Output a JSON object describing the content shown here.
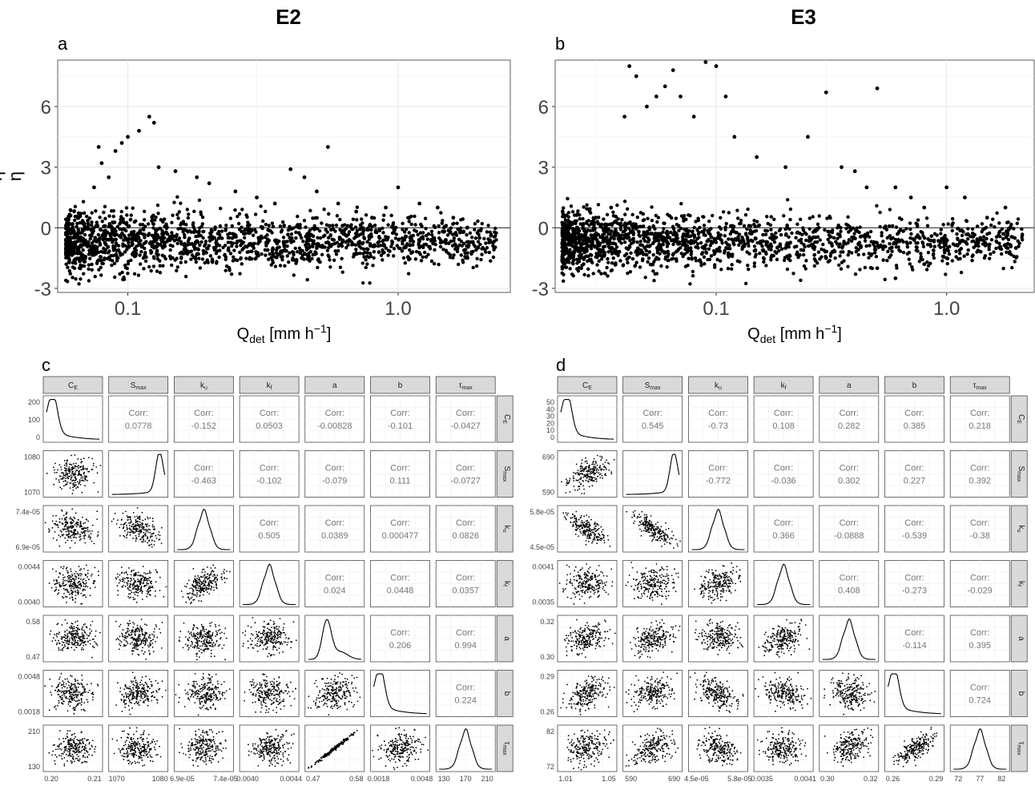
{
  "top": {
    "left_title": "E2",
    "right_title": "E3",
    "panel_labels": [
      "a",
      "b",
      "c",
      "d"
    ],
    "ylabel": "η",
    "xlabel_main": "Q",
    "xlabel_sub": "det",
    "xlabel_unit": " [mm h",
    "xlabel_exp": "−1",
    "xlabel_close": "]",
    "yticks": [
      "-3",
      "0",
      "3",
      "6"
    ],
    "xticks": [
      "0.1",
      "1.0"
    ]
  },
  "pairs": {
    "params": [
      {
        "base": "C",
        "sub": "E"
      },
      {
        "base": "S",
        "sub": "max"
      },
      {
        "base": "k",
        "sub": "u"
      },
      {
        "base": "k",
        "sub": "f"
      },
      {
        "base": "a",
        "sub": ""
      },
      {
        "base": "b",
        "sub": ""
      },
      {
        "base": "τ",
        "sub": "max"
      }
    ],
    "corr_label": "Corr:"
  },
  "chart_data": [
    {
      "type": "scatter",
      "panel": "a",
      "title": "E2",
      "xlabel": "Qdet [mm h−1]",
      "ylabel": "η",
      "x_scale": "log",
      "xlim": [
        0.055,
        2.6
      ],
      "ylim": [
        -3.2,
        8.3
      ],
      "xticks": [
        0.1,
        1.0
      ],
      "yticks": [
        -3,
        0,
        3,
        6
      ],
      "hline": 0,
      "grid": true,
      "points": [
        [
          0.06,
          -1.2
        ],
        [
          0.065,
          -1.0
        ],
        [
          0.07,
          -0.8
        ],
        [
          0.075,
          2.0
        ],
        [
          0.078,
          4.0
        ],
        [
          0.08,
          3.2
        ],
        [
          0.085,
          2.5
        ],
        [
          0.09,
          3.8
        ],
        [
          0.095,
          4.2
        ],
        [
          0.1,
          4.5
        ],
        [
          0.11,
          4.8
        ],
        [
          0.12,
          5.5
        ],
        [
          0.125,
          5.2
        ],
        [
          0.13,
          3.0
        ],
        [
          0.15,
          2.8
        ],
        [
          0.18,
          2.5
        ],
        [
          0.2,
          2.2
        ],
        [
          0.25,
          1.8
        ],
        [
          0.3,
          1.5
        ],
        [
          0.35,
          1.2
        ],
        [
          0.4,
          2.9
        ],
        [
          0.45,
          2.5
        ],
        [
          0.5,
          1.8
        ],
        [
          0.55,
          4.0
        ],
        [
          0.6,
          1.2
        ],
        [
          0.7,
          0.8
        ],
        [
          0.8,
          0.5
        ],
        [
          0.9,
          1.0
        ],
        [
          1.0,
          2.0
        ],
        [
          1.1,
          0.5
        ],
        [
          1.2,
          1.2
        ],
        [
          1.4,
          1.0
        ],
        [
          1.6,
          0.5
        ],
        [
          1.8,
          0.0
        ],
        [
          2.0,
          -0.5
        ],
        [
          2.2,
          -0.7
        ],
        [
          0.3,
          -1.3
        ],
        [
          0.5,
          -1.0
        ],
        [
          0.8,
          -0.9
        ],
        [
          1.5,
          -0.6
        ]
      ]
    },
    {
      "type": "scatter",
      "panel": "b",
      "title": "E3",
      "xlabel": "Qdet [mm h−1]",
      "ylabel": "η",
      "x_scale": "log",
      "xlim": [
        0.02,
        2.4
      ],
      "ylim": [
        -3.2,
        8.3
      ],
      "xticks": [
        0.1,
        1.0
      ],
      "yticks": [
        -3,
        0,
        3,
        6
      ],
      "hline": 0,
      "grid": true,
      "points": [
        [
          0.022,
          0.2
        ],
        [
          0.025,
          0.0
        ],
        [
          0.03,
          0.5
        ],
        [
          0.035,
          1.0
        ],
        [
          0.04,
          5.5
        ],
        [
          0.042,
          8.0
        ],
        [
          0.045,
          7.5
        ],
        [
          0.05,
          6.0
        ],
        [
          0.055,
          6.5
        ],
        [
          0.06,
          7.0
        ],
        [
          0.065,
          7.8
        ],
        [
          0.07,
          6.5
        ],
        [
          0.08,
          5.5
        ],
        [
          0.09,
          8.2
        ],
        [
          0.1,
          8.0
        ],
        [
          0.11,
          6.5
        ],
        [
          0.12,
          4.5
        ],
        [
          0.15,
          3.5
        ],
        [
          0.2,
          3.0
        ],
        [
          0.25,
          4.5
        ],
        [
          0.3,
          6.7
        ],
        [
          0.35,
          3.0
        ],
        [
          0.4,
          2.8
        ],
        [
          0.45,
          2.0
        ],
        [
          0.5,
          6.9
        ],
        [
          0.6,
          2.0
        ],
        [
          0.7,
          1.5
        ],
        [
          0.8,
          1.0
        ],
        [
          1.0,
          2.0
        ],
        [
          1.2,
          1.5
        ],
        [
          1.5,
          0.5
        ],
        [
          1.8,
          1.0
        ],
        [
          2.0,
          -1.0
        ],
        [
          0.3,
          -1.5
        ],
        [
          0.5,
          -2.0
        ],
        [
          0.6,
          -2.5
        ],
        [
          1.0,
          -1.5
        ],
        [
          0.2,
          -1.0
        ],
        [
          0.8,
          -1.8
        ],
        [
          1.4,
          -0.5
        ]
      ]
    },
    {
      "type": "scatter-matrix",
      "panel": "c",
      "variables": [
        "CE",
        "Smax",
        "ku",
        "kf",
        "a",
        "b",
        "τmax"
      ],
      "corr": [
        [
          "",
          "0.0778",
          "-0.152",
          "0.0503",
          "-0.00828",
          "-0.101",
          "-0.0427"
        ],
        [
          "",
          "",
          "-0.463",
          "-0.102",
          "-0.079",
          "0.111",
          "-0.0727"
        ],
        [
          "",
          "",
          "",
          "0.505",
          "0.0389",
          "0.000477",
          "0.0826"
        ],
        [
          "",
          "",
          "",
          "",
          "0.024",
          "0.0448",
          "0.0357"
        ],
        [
          "",
          "",
          "",
          "",
          "",
          "0.206",
          "0.994"
        ],
        [
          "",
          "",
          "",
          "",
          "",
          "",
          "0.224"
        ],
        [
          "",
          "",
          "",
          "",
          "",
          "",
          ""
        ]
      ],
      "row_ticks": [
        [
          "0",
          "100",
          "200"
        ],
        [
          "1070",
          "1080"
        ],
        [
          "6.9e-05",
          "7.4e-05"
        ],
        [
          "0.0040",
          "0.0044"
        ],
        [
          "0.47",
          "0.58"
        ],
        [
          "0.0018",
          "0.0048"
        ],
        [
          "130",
          "210"
        ]
      ],
      "col_ticks": [
        [
          "0.20",
          "0.21"
        ],
        [
          "1070",
          "1080"
        ],
        [
          "6.9e-05",
          "7.4e-05"
        ],
        [
          "0.0040",
          "0.0044"
        ],
        [
          "0.47",
          "0.58"
        ],
        [
          "0.0018",
          "0.0048"
        ],
        [
          "130",
          "170",
          "210"
        ]
      ]
    },
    {
      "type": "scatter-matrix",
      "panel": "d",
      "variables": [
        "CE",
        "Smax",
        "ku",
        "kf",
        "a",
        "b",
        "τmax"
      ],
      "corr": [
        [
          "",
          "0.545",
          "-0.73",
          "0.108",
          "0.282",
          "0.385",
          "0.218"
        ],
        [
          "",
          "",
          "-0.772",
          "-0.036",
          "0.302",
          "0.227",
          "0.392"
        ],
        [
          "",
          "",
          "",
          "0.366",
          "-0.0888",
          "-0.539",
          "-0.38"
        ],
        [
          "",
          "",
          "",
          "",
          "0.408",
          "-0.273",
          "-0.029"
        ],
        [
          "",
          "",
          "",
          "",
          "",
          "-0.114",
          "0.395"
        ],
        [
          "",
          "",
          "",
          "",
          "",
          "",
          "0.724"
        ],
        [
          "",
          "",
          "",
          "",
          "",
          "",
          ""
        ]
      ],
      "row_ticks": [
        [
          "0",
          "10",
          "20",
          "30",
          "40",
          "50"
        ],
        [
          "590",
          "690"
        ],
        [
          "4.5e-05",
          "5.8e-05"
        ],
        [
          "0.0035",
          "0.0041"
        ],
        [
          "0.30",
          "0.32"
        ],
        [
          "0.26",
          "0.29"
        ],
        [
          "72",
          "82"
        ]
      ],
      "col_ticks": [
        [
          "1.01",
          "1.05"
        ],
        [
          "590",
          "690"
        ],
        [
          "4.5e-05",
          "5.8e-05"
        ],
        [
          "0.0035",
          "0.0041"
        ],
        [
          "0.30",
          "0.32"
        ],
        [
          "0.26",
          "0.29"
        ],
        [
          "72",
          "77",
          "82"
        ]
      ]
    }
  ]
}
